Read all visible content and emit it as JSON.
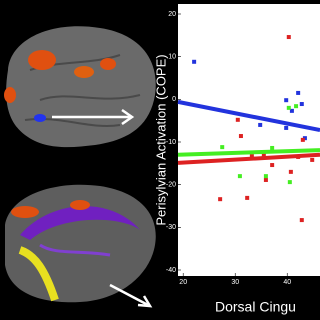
{
  "chart_data": {
    "type": "scatter",
    "y_label": "Perisylvian Activation (COPE)",
    "x_label": "Dorsal Cingu",
    "xlim": [
      19,
      46.3
    ],
    "ylim": [
      -40,
      20
    ],
    "xticks": [
      20,
      30,
      40
    ],
    "yticks": [
      20,
      10,
      0,
      -10,
      -20,
      -30,
      -40
    ],
    "series": [
      {
        "color": "#2233dd",
        "x": [
          22.1,
          34.8,
          39.8,
          40.9,
          42.1,
          42.8,
          39.8,
          43.4
        ],
        "values": [
          8.8,
          -6.0,
          -0.2,
          -2.7,
          1.5,
          -1.1,
          -6.7,
          -9.1
        ],
        "fit_x": [
          19,
          46.3
        ],
        "fit_values": [
          -0.6,
          -7.2
        ]
      },
      {
        "color": "#dd2222",
        "x": [
          40.3,
          30.5,
          31.1,
          33.2,
          35.5,
          37.1,
          40.7,
          42.1,
          43.0,
          44.8,
          35.9,
          42.8,
          32.3,
          27.1
        ],
        "values": [
          14.6,
          -4.8,
          -8.6,
          -13.3,
          -13.0,
          -15.4,
          -17.0,
          -13.5,
          -9.5,
          -14.2,
          -18.9,
          -28.3,
          -23.1,
          -23.4
        ],
        "fit_x": [
          19,
          46.3
        ],
        "fit_values": [
          -14.9,
          -13.0
        ]
      },
      {
        "color": "#44ee22",
        "x": [
          27.5,
          37.1,
          40.3,
          41.7,
          35.9,
          40.5,
          30.9
        ],
        "values": [
          -11.2,
          -11.4,
          -2.0,
          -1.6,
          -18.0,
          -19.4,
          -18.0
        ],
        "fit_x": [
          19,
          46.3
        ],
        "fit_values": [
          -13.0,
          -11.9
        ]
      }
    ]
  }
}
